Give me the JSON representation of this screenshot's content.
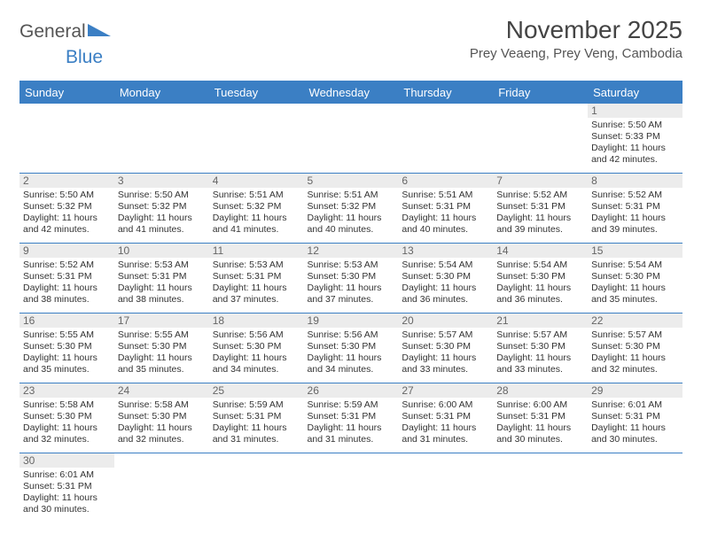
{
  "logo": {
    "text_a": "General",
    "text_b": "Blue"
  },
  "header": {
    "month_title": "November 2025",
    "location": "Prey Veaeng, Prey Veng, Cambodia"
  },
  "colors": {
    "header_bg": "#3b7fc4",
    "grid_line": "#3b7fc4",
    "daynum_bg": "#ececec",
    "text": "#333333",
    "page_bg": "#ffffff"
  },
  "calendar": {
    "type": "table",
    "columns": [
      "Sunday",
      "Monday",
      "Tuesday",
      "Wednesday",
      "Thursday",
      "Friday",
      "Saturday"
    ],
    "weeks": [
      [
        null,
        null,
        null,
        null,
        null,
        null,
        {
          "n": "1",
          "sr": "Sunrise: 5:50 AM",
          "ss": "Sunset: 5:33 PM",
          "d1": "Daylight: 11 hours",
          "d2": "and 42 minutes."
        }
      ],
      [
        {
          "n": "2",
          "sr": "Sunrise: 5:50 AM",
          "ss": "Sunset: 5:32 PM",
          "d1": "Daylight: 11 hours",
          "d2": "and 42 minutes."
        },
        {
          "n": "3",
          "sr": "Sunrise: 5:50 AM",
          "ss": "Sunset: 5:32 PM",
          "d1": "Daylight: 11 hours",
          "d2": "and 41 minutes."
        },
        {
          "n": "4",
          "sr": "Sunrise: 5:51 AM",
          "ss": "Sunset: 5:32 PM",
          "d1": "Daylight: 11 hours",
          "d2": "and 41 minutes."
        },
        {
          "n": "5",
          "sr": "Sunrise: 5:51 AM",
          "ss": "Sunset: 5:32 PM",
          "d1": "Daylight: 11 hours",
          "d2": "and 40 minutes."
        },
        {
          "n": "6",
          "sr": "Sunrise: 5:51 AM",
          "ss": "Sunset: 5:31 PM",
          "d1": "Daylight: 11 hours",
          "d2": "and 40 minutes."
        },
        {
          "n": "7",
          "sr": "Sunrise: 5:52 AM",
          "ss": "Sunset: 5:31 PM",
          "d1": "Daylight: 11 hours",
          "d2": "and 39 minutes."
        },
        {
          "n": "8",
          "sr": "Sunrise: 5:52 AM",
          "ss": "Sunset: 5:31 PM",
          "d1": "Daylight: 11 hours",
          "d2": "and 39 minutes."
        }
      ],
      [
        {
          "n": "9",
          "sr": "Sunrise: 5:52 AM",
          "ss": "Sunset: 5:31 PM",
          "d1": "Daylight: 11 hours",
          "d2": "and 38 minutes."
        },
        {
          "n": "10",
          "sr": "Sunrise: 5:53 AM",
          "ss": "Sunset: 5:31 PM",
          "d1": "Daylight: 11 hours",
          "d2": "and 38 minutes."
        },
        {
          "n": "11",
          "sr": "Sunrise: 5:53 AM",
          "ss": "Sunset: 5:31 PM",
          "d1": "Daylight: 11 hours",
          "d2": "and 37 minutes."
        },
        {
          "n": "12",
          "sr": "Sunrise: 5:53 AM",
          "ss": "Sunset: 5:30 PM",
          "d1": "Daylight: 11 hours",
          "d2": "and 37 minutes."
        },
        {
          "n": "13",
          "sr": "Sunrise: 5:54 AM",
          "ss": "Sunset: 5:30 PM",
          "d1": "Daylight: 11 hours",
          "d2": "and 36 minutes."
        },
        {
          "n": "14",
          "sr": "Sunrise: 5:54 AM",
          "ss": "Sunset: 5:30 PM",
          "d1": "Daylight: 11 hours",
          "d2": "and 36 minutes."
        },
        {
          "n": "15",
          "sr": "Sunrise: 5:54 AM",
          "ss": "Sunset: 5:30 PM",
          "d1": "Daylight: 11 hours",
          "d2": "and 35 minutes."
        }
      ],
      [
        {
          "n": "16",
          "sr": "Sunrise: 5:55 AM",
          "ss": "Sunset: 5:30 PM",
          "d1": "Daylight: 11 hours",
          "d2": "and 35 minutes."
        },
        {
          "n": "17",
          "sr": "Sunrise: 5:55 AM",
          "ss": "Sunset: 5:30 PM",
          "d1": "Daylight: 11 hours",
          "d2": "and 35 minutes."
        },
        {
          "n": "18",
          "sr": "Sunrise: 5:56 AM",
          "ss": "Sunset: 5:30 PM",
          "d1": "Daylight: 11 hours",
          "d2": "and 34 minutes."
        },
        {
          "n": "19",
          "sr": "Sunrise: 5:56 AM",
          "ss": "Sunset: 5:30 PM",
          "d1": "Daylight: 11 hours",
          "d2": "and 34 minutes."
        },
        {
          "n": "20",
          "sr": "Sunrise: 5:57 AM",
          "ss": "Sunset: 5:30 PM",
          "d1": "Daylight: 11 hours",
          "d2": "and 33 minutes."
        },
        {
          "n": "21",
          "sr": "Sunrise: 5:57 AM",
          "ss": "Sunset: 5:30 PM",
          "d1": "Daylight: 11 hours",
          "d2": "and 33 minutes."
        },
        {
          "n": "22",
          "sr": "Sunrise: 5:57 AM",
          "ss": "Sunset: 5:30 PM",
          "d1": "Daylight: 11 hours",
          "d2": "and 32 minutes."
        }
      ],
      [
        {
          "n": "23",
          "sr": "Sunrise: 5:58 AM",
          "ss": "Sunset: 5:30 PM",
          "d1": "Daylight: 11 hours",
          "d2": "and 32 minutes."
        },
        {
          "n": "24",
          "sr": "Sunrise: 5:58 AM",
          "ss": "Sunset: 5:30 PM",
          "d1": "Daylight: 11 hours",
          "d2": "and 32 minutes."
        },
        {
          "n": "25",
          "sr": "Sunrise: 5:59 AM",
          "ss": "Sunset: 5:31 PM",
          "d1": "Daylight: 11 hours",
          "d2": "and 31 minutes."
        },
        {
          "n": "26",
          "sr": "Sunrise: 5:59 AM",
          "ss": "Sunset: 5:31 PM",
          "d1": "Daylight: 11 hours",
          "d2": "and 31 minutes."
        },
        {
          "n": "27",
          "sr": "Sunrise: 6:00 AM",
          "ss": "Sunset: 5:31 PM",
          "d1": "Daylight: 11 hours",
          "d2": "and 31 minutes."
        },
        {
          "n": "28",
          "sr": "Sunrise: 6:00 AM",
          "ss": "Sunset: 5:31 PM",
          "d1": "Daylight: 11 hours",
          "d2": "and 30 minutes."
        },
        {
          "n": "29",
          "sr": "Sunrise: 6:01 AM",
          "ss": "Sunset: 5:31 PM",
          "d1": "Daylight: 11 hours",
          "d2": "and 30 minutes."
        }
      ],
      [
        {
          "n": "30",
          "sr": "Sunrise: 6:01 AM",
          "ss": "Sunset: 5:31 PM",
          "d1": "Daylight: 11 hours",
          "d2": "and 30 minutes."
        },
        null,
        null,
        null,
        null,
        null,
        null
      ]
    ]
  }
}
